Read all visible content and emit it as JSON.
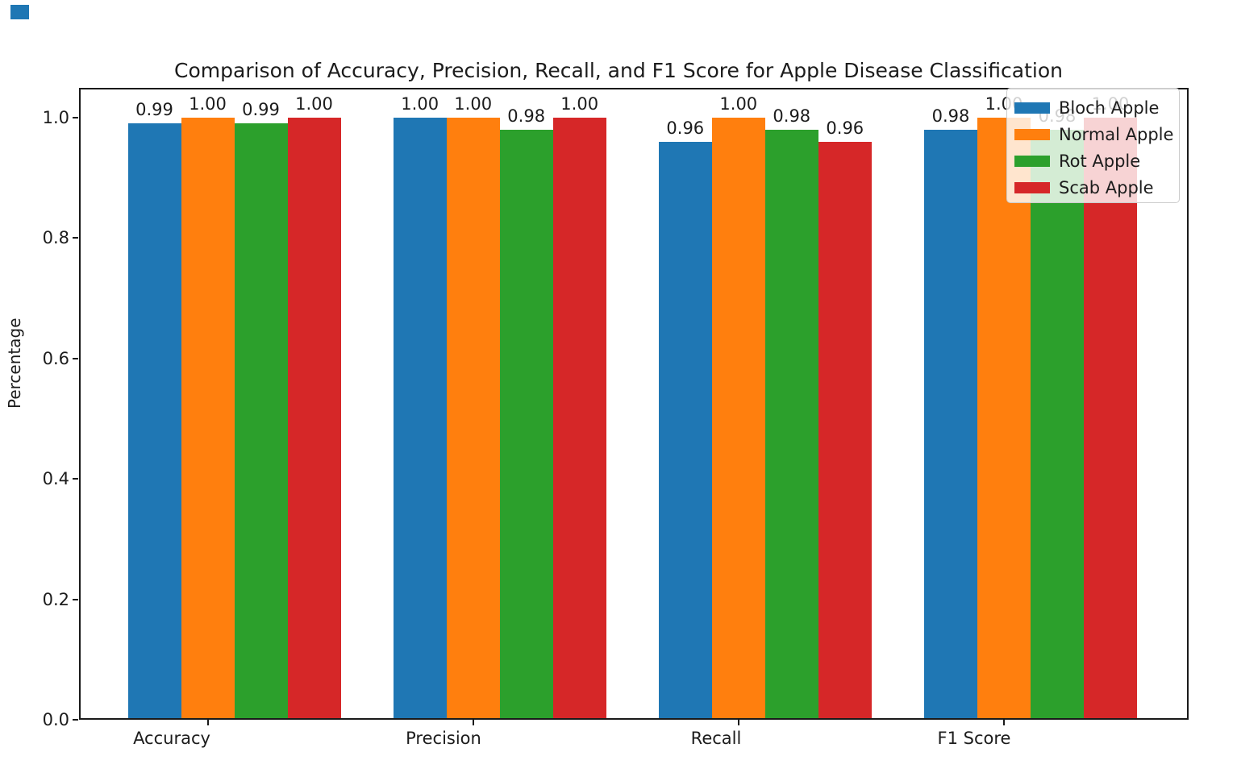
{
  "accent_colors": {
    "corner_marker": "#1f77b4",
    "axis": "#1a1a1a",
    "legend_border": "#cccccc"
  },
  "chart_data": {
    "type": "bar",
    "title": "Comparison of Accuracy, Precision, Recall, and F1 Score for Apple Disease Classification",
    "xlabel": "",
    "ylabel": "Percentage",
    "categories": [
      "Accuracy",
      "Precision",
      "Recall",
      "F1 Score"
    ],
    "series": [
      {
        "name": "Bloch Apple",
        "color": "#1f77b4",
        "values": [
          0.99,
          1.0,
          0.96,
          0.98
        ],
        "labels": [
          "0.99",
          "1.00",
          "0.96",
          "0.98"
        ]
      },
      {
        "name": "Normal Apple",
        "color": "#ff7f0e",
        "values": [
          1.0,
          1.0,
          1.0,
          1.0
        ],
        "labels": [
          "1.00",
          "1.00",
          "1.00",
          "1.00"
        ]
      },
      {
        "name": "Rot Apple",
        "color": "#2ca02c",
        "values": [
          0.99,
          0.98,
          0.98,
          0.98
        ],
        "labels": [
          "0.99",
          "0.98",
          "0.98",
          "0.98"
        ]
      },
      {
        "name": "Scab Apple",
        "color": "#d62728",
        "values": [
          1.0,
          1.0,
          0.96,
          1.0
        ],
        "labels": [
          "1.00",
          "1.00",
          "0.96",
          "1.00"
        ]
      }
    ],
    "yticks": [
      "0.0",
      "0.2",
      "0.4",
      "0.6",
      "0.8",
      "1.0"
    ],
    "ytick_values": [
      0.0,
      0.2,
      0.4,
      0.6,
      0.8,
      1.0
    ],
    "ylim": [
      0.0,
      1.05
    ],
    "grid": false,
    "legend_position": "upper right",
    "bar_value_labels_shown": true
  }
}
